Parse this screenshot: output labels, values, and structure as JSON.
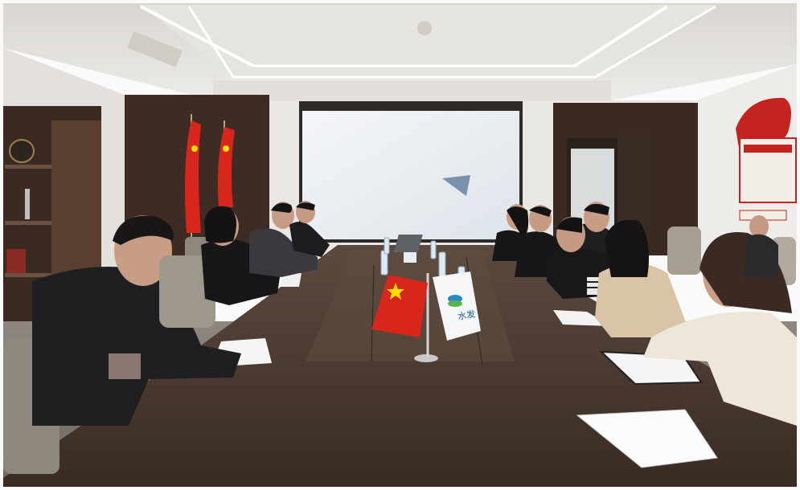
{
  "scene": {
    "flag_label": "水发"
  },
  "colors": {
    "wall": "#e9e6e2",
    "ceiling": "#e4e1dc",
    "wood": "#3b2a22",
    "table": "#4a3a30",
    "flag_red": "#d8261c",
    "flag_star": "#ffde00",
    "screen": "#e9eef2"
  }
}
